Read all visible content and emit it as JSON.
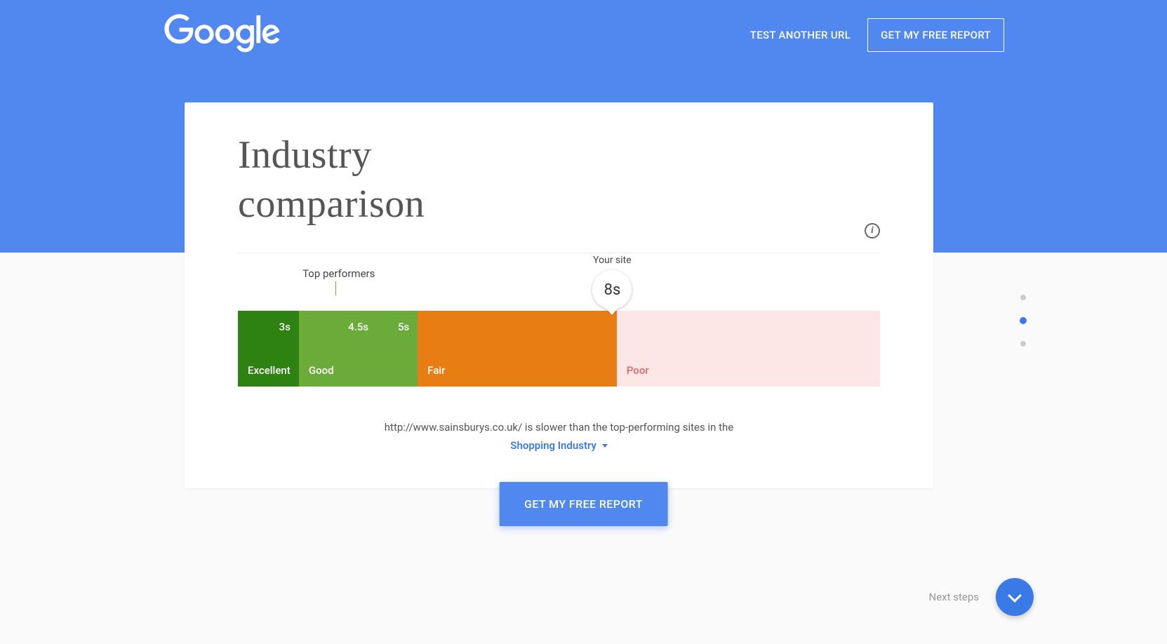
{
  "header": {
    "logo_text": "Google",
    "test_link": "TEST ANOTHER URL",
    "report_btn": "GET MY FREE REPORT"
  },
  "card": {
    "title_line1": "Industry",
    "title_line2": "comparison",
    "info_glyph": "i"
  },
  "chart": {
    "type": "segmented-bar",
    "top_performers_label": "Top performers",
    "top_performers_tick_percent": 15.2,
    "segments": [
      {
        "label": "Excellent",
        "time": "3s",
        "color": "#2e8212",
        "width_percent": 9.5
      },
      {
        "label": "Good",
        "time": "4.5s",
        "color": "#6bab3a",
        "width_percent": 18.5,
        "extra_time_right": "5s"
      },
      {
        "label": "Fair",
        "time": "",
        "color": "#e87d13",
        "width_percent": 31
      },
      {
        "label": "Poor",
        "time": "",
        "color": "#fce6e6",
        "width_percent": 41
      }
    ],
    "marker": {
      "label": "Your site",
      "value": "8s",
      "position_percent": 58.3
    }
  },
  "caption": {
    "prefix": "http://www.sainsburys.co.uk/  is slower than the top-performing sites in the",
    "industry": "Shopping Industry"
  },
  "cta": "GET MY FREE REPORT",
  "pager": {
    "count": 3,
    "active_index": 1
  },
  "next": {
    "label": "Next steps"
  },
  "colors": {
    "brand_blue": "#5088f0",
    "link_blue": "#3a7ae6",
    "poor_text": "#e46a6a"
  }
}
